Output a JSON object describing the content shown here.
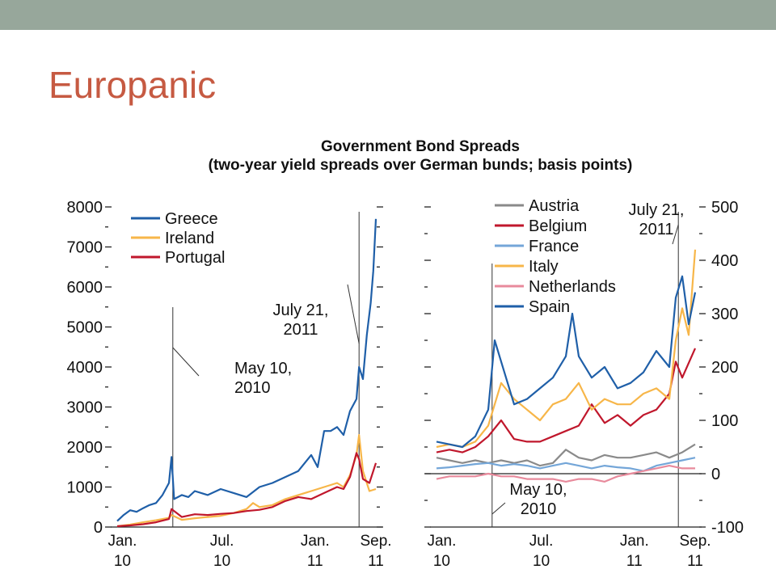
{
  "slide": {
    "title": "Europanic"
  },
  "figure": {
    "title": "Government Bond Spreads",
    "subtitle": "(two-year yield spreads over German bunds; basis points)"
  },
  "chart_data": [
    {
      "type": "line",
      "xlabels": [
        [
          "Jan.",
          "10"
        ],
        [
          "Jul.",
          "10"
        ],
        [
          "Jan.",
          "11"
        ],
        [
          "Sep.",
          "11"
        ]
      ],
      "ylim": [
        0,
        8000
      ],
      "yticks": [
        0,
        1000,
        2000,
        3000,
        4000,
        5000,
        6000,
        7000,
        8000
      ],
      "legend_position": "top-left",
      "annotations": [
        {
          "text": [
            "May 10,",
            "2010"
          ],
          "x": 4.3
        },
        {
          "text": [
            "July 21,",
            "2011"
          ],
          "x": 18.7
        }
      ],
      "series": [
        {
          "name": "Greece",
          "color": "#1f5fa8",
          "x": [
            0,
            0.5,
            1,
            1.5,
            2,
            2.5,
            3,
            3.5,
            4,
            4.2,
            4.4,
            5,
            5.5,
            6,
            7,
            8,
            9,
            10,
            11,
            12,
            13,
            14,
            15,
            15.5,
            16,
            16.5,
            17,
            17.5,
            18,
            18.5,
            18.7,
            19,
            19.3,
            19.6,
            19.8,
            20
          ],
          "values": [
            150,
            300,
            420,
            380,
            470,
            550,
            600,
            800,
            1100,
            1750,
            700,
            800,
            750,
            900,
            800,
            950,
            850,
            750,
            1000,
            1100,
            1250,
            1400,
            1800,
            1500,
            2400,
            2400,
            2500,
            2300,
            2900,
            3200,
            4000,
            3700,
            4800,
            5600,
            6400,
            7700
          ]
        },
        {
          "name": "Ireland",
          "color": "#f7b649",
          "x": [
            0,
            1,
            2,
            3,
            4,
            4.2,
            5,
            6,
            7,
            8,
            9,
            10,
            10.5,
            11,
            12,
            13,
            14,
            15,
            16,
            17,
            17.5,
            18,
            18.5,
            18.7,
            19,
            19.5,
            20
          ],
          "values": [
            20,
            60,
            120,
            170,
            230,
            300,
            180,
            220,
            250,
            280,
            350,
            450,
            600,
            500,
            550,
            700,
            800,
            900,
            1000,
            1100,
            1000,
            1300,
            1800,
            2300,
            1400,
            900,
            950
          ]
        },
        {
          "name": "Portugal",
          "color": "#c0172c",
          "x": [
            0,
            1,
            2,
            3,
            4,
            4.2,
            5,
            6,
            7,
            8,
            9,
            10,
            11,
            12,
            13,
            14,
            15,
            16,
            17,
            17.5,
            18,
            18.5,
            18.7,
            19,
            19.5,
            20
          ],
          "values": [
            20,
            40,
            70,
            120,
            200,
            450,
            250,
            320,
            300,
            330,
            350,
            400,
            430,
            500,
            650,
            750,
            700,
            850,
            1000,
            950,
            1250,
            1850,
            1700,
            1200,
            1100,
            1600
          ]
        }
      ]
    },
    {
      "type": "line",
      "xlabels": [
        [
          "Jan.",
          "10"
        ],
        [
          "Jul.",
          "10"
        ],
        [
          "Jan.",
          "11"
        ],
        [
          "Sep.",
          "11"
        ]
      ],
      "ylim": [
        -100,
        500
      ],
      "yticks": [
        -100,
        0,
        100,
        200,
        300,
        400,
        500
      ],
      "legend_position": "top-left",
      "annotations": [
        {
          "text": [
            "May 10,",
            "2010"
          ],
          "x": 4.3
        },
        {
          "text": [
            "July 21,",
            "2011"
          ],
          "x": 18.7
        }
      ],
      "series": [
        {
          "name": "Austria",
          "color": "#8a8a8a",
          "x": [
            0,
            1,
            2,
            3,
            4,
            5,
            6,
            7,
            8,
            9,
            10,
            11,
            12,
            13,
            14,
            15,
            16,
            17,
            18,
            19,
            20
          ],
          "values": [
            30,
            25,
            20,
            25,
            20,
            25,
            20,
            25,
            15,
            20,
            45,
            30,
            25,
            35,
            30,
            30,
            35,
            40,
            30,
            40,
            55
          ]
        },
        {
          "name": "Belgium",
          "color": "#c0172c",
          "x": [
            0,
            1,
            2,
            3,
            4,
            5,
            6,
            7,
            8,
            9,
            10,
            11,
            12,
            13,
            14,
            15,
            16,
            17,
            18,
            18.5,
            19,
            20
          ],
          "values": [
            40,
            45,
            40,
            50,
            70,
            100,
            65,
            60,
            60,
            70,
            80,
            90,
            130,
            95,
            110,
            90,
            110,
            120,
            150,
            210,
            180,
            235
          ]
        },
        {
          "name": "France",
          "color": "#74a6d8",
          "x": [
            0,
            1,
            2,
            3,
            4,
            5,
            6,
            7,
            8,
            9,
            10,
            11,
            12,
            13,
            14,
            15,
            16,
            17,
            18,
            19,
            20
          ],
          "values": [
            10,
            12,
            15,
            18,
            20,
            15,
            18,
            15,
            10,
            15,
            20,
            15,
            10,
            15,
            12,
            10,
            5,
            15,
            20,
            25,
            30
          ]
        },
        {
          "name": "Italy",
          "color": "#f7b649",
          "x": [
            0,
            1,
            2,
            3,
            4,
            5,
            6,
            7,
            8,
            9,
            10,
            11,
            12,
            13,
            14,
            15,
            16,
            17,
            18,
            18.5,
            19,
            19.5,
            20
          ],
          "values": [
            50,
            55,
            50,
            60,
            90,
            170,
            140,
            120,
            100,
            130,
            140,
            170,
            120,
            140,
            130,
            130,
            150,
            160,
            140,
            250,
            310,
            260,
            420
          ]
        },
        {
          "name": "Netherlands",
          "color": "#e88a9c",
          "x": [
            0,
            1,
            2,
            3,
            4,
            5,
            6,
            7,
            8,
            9,
            10,
            11,
            12,
            13,
            14,
            15,
            16,
            17,
            18,
            19,
            20
          ],
          "values": [
            -10,
            -5,
            -5,
            -5,
            0,
            -5,
            -5,
            -10,
            -10,
            -10,
            -15,
            -10,
            -10,
            -15,
            -5,
            0,
            5,
            10,
            15,
            10,
            10
          ]
        },
        {
          "name": "Spain",
          "color": "#1f5fa8",
          "x": [
            0,
            1,
            2,
            3,
            4,
            4.5,
            5,
            6,
            7,
            8,
            9,
            10,
            10.5,
            11,
            12,
            13,
            14,
            15,
            16,
            17,
            18,
            18.5,
            19,
            19.5,
            20
          ],
          "values": [
            60,
            55,
            50,
            70,
            120,
            250,
            210,
            130,
            140,
            160,
            180,
            220,
            300,
            220,
            180,
            200,
            160,
            170,
            190,
            230,
            200,
            330,
            370,
            280,
            340
          ]
        }
      ]
    }
  ]
}
